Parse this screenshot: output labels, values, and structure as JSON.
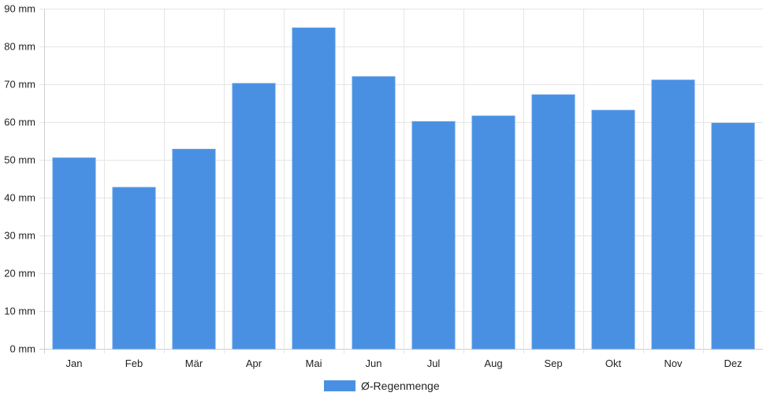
{
  "chart_data": {
    "type": "bar",
    "categories": [
      "Jan",
      "Feb",
      "Mär",
      "Apr",
      "Mai",
      "Jun",
      "Jul",
      "Aug",
      "Sep",
      "Okt",
      "Nov",
      "Dez"
    ],
    "series": [
      {
        "name": "Ø-Regenmenge",
        "values": [
          50.5,
          42.7,
          52.8,
          70.2,
          84.9,
          72.0,
          60.1,
          61.6,
          67.2,
          63.1,
          71.1,
          59.7
        ]
      }
    ],
    "y_unit": "mm",
    "ylim": [
      0,
      90
    ],
    "y_ticks": [
      0,
      10,
      20,
      30,
      40,
      50,
      60,
      70,
      80,
      90
    ],
    "y_tick_labels": [
      "0 mm",
      "10 mm",
      "20 mm",
      "30 mm",
      "40 mm",
      "50 mm",
      "60 mm",
      "70 mm",
      "80 mm",
      "90 mm"
    ],
    "grid": true,
    "legend_position": "bottom-center",
    "colors": {
      "bar": "#4a90e2",
      "grid": "#e5e5e5",
      "axis": "#cfcfcf",
      "text": "#222222"
    }
  }
}
